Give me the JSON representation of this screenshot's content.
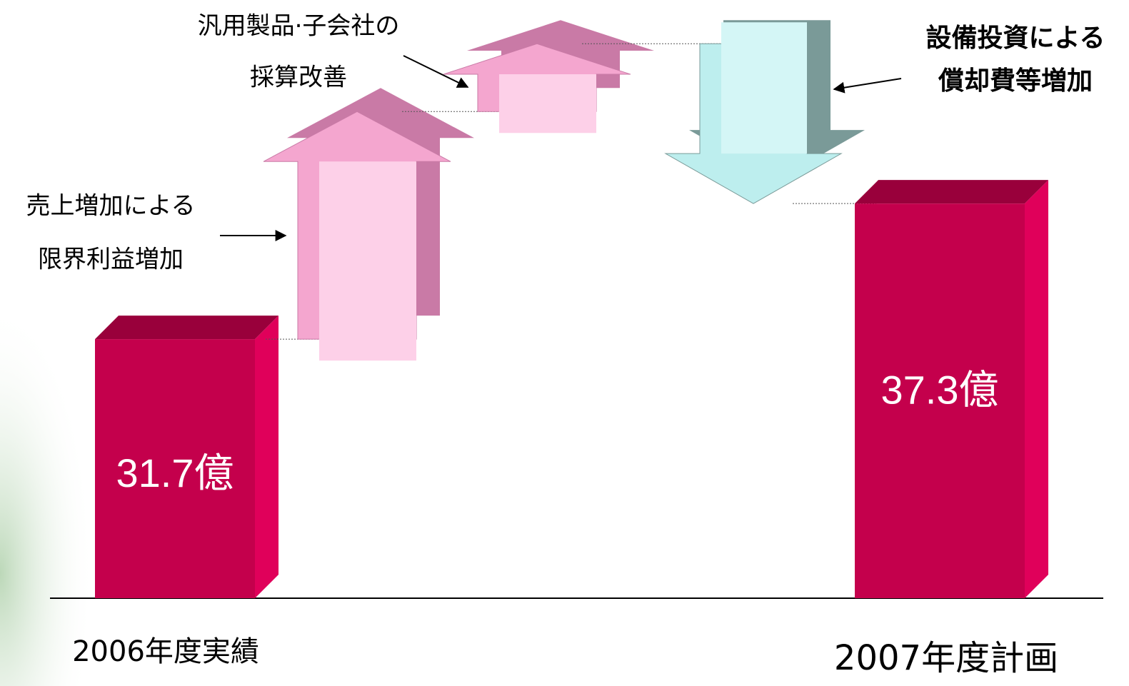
{
  "chart_data": {
    "type": "waterfall",
    "categories": [
      "2006年度実績",
      null,
      null,
      null,
      "2007年度計画"
    ],
    "values": [
      31.7,
      9.4,
      2.8,
      -6.6,
      37.3
    ],
    "value_labels": [
      "31.7億",
      null,
      null,
      null,
      "37.3億"
    ],
    "step_labels": [
      null,
      [
        "売上増加による",
        "限界利益増加"
      ],
      [
        "汎用製品·子会社の",
        "採算改善"
      ],
      [
        "設備投資による",
        "償却費等増加"
      ],
      null
    ],
    "ylim": [
      21,
      45
    ],
    "colors": {
      "total": "#c4004c",
      "increase": "#f4a6cf",
      "decrease": "#bdeeee"
    }
  }
}
